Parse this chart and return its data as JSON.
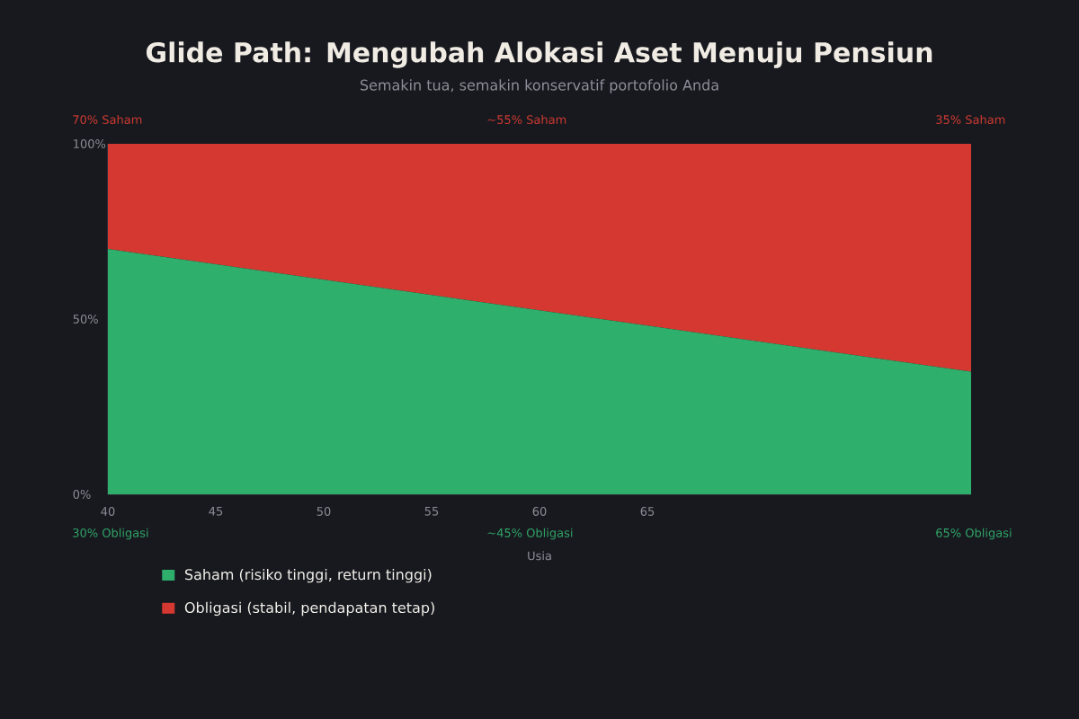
{
  "chart_data": {
    "type": "area",
    "title": "Glide Path: Mengubah Alokasi Aset Menuju Pensiun",
    "subtitle": "Semakin tua, semakin konservatif portofolio Anda",
    "xlabel": "Usia",
    "x": [
      40,
      80
    ],
    "stacked": true,
    "series": [
      {
        "name": "Saham (risiko tinggi, return tinggi)",
        "color": "#2eaf6c",
        "values": [
          70,
          35
        ]
      },
      {
        "name": "Obligasi (stabil, pendapatan tetap)",
        "color": "#d53830",
        "values": [
          30,
          65
        ]
      }
    ],
    "xlim": [
      40,
      80
    ],
    "xticks": [
      40,
      45,
      50,
      55,
      60,
      65
    ],
    "ylim": [
      0,
      100
    ],
    "yticks": [
      {
        "value": 0,
        "label": "0%"
      },
      {
        "value": 50,
        "label": "50%"
      },
      {
        "value": 100,
        "label": "100%"
      }
    ],
    "annotations": [
      "70% Saham",
      "~55% Saham",
      "35% Saham",
      "30% Obligasi",
      "~45% Obligasi",
      "65% Obligasi"
    ],
    "legend": "bottom left"
  }
}
